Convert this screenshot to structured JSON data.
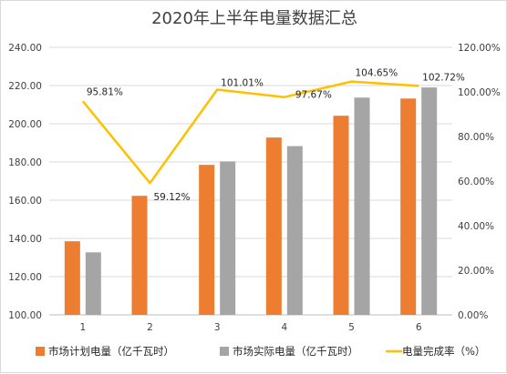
{
  "chart_data": {
    "type": "bar",
    "title": "2020年上半年电量数据汇总",
    "categories": [
      "1",
      "2",
      "3",
      "4",
      "5",
      "6"
    ],
    "series": [
      {
        "name": "市场计划电量（亿千瓦时）",
        "kind": "bar",
        "axis": "left",
        "color": "#ED7D31",
        "values": [
          138.5,
          162.3,
          178.5,
          192.8,
          204.2,
          213.2
        ]
      },
      {
        "name": "市场实际电量（亿千瓦时）",
        "kind": "bar",
        "axis": "left",
        "color": "#A5A5A5",
        "values": [
          132.7,
          null,
          180.3,
          188.3,
          213.7,
          219.0
        ]
      },
      {
        "name": "电量完成率（%）",
        "kind": "line",
        "axis": "right",
        "color": "#FFC000",
        "values": [
          95.81,
          59.12,
          101.01,
          97.67,
          104.65,
          102.72
        ],
        "labels": [
          "95.81%",
          "59.12%",
          "101.01%",
          "97.67%",
          "104.65%",
          "102.72%"
        ]
      }
    ],
    "y_left": {
      "min": 100,
      "max": 240,
      "step": 20,
      "ticks": [
        "100.00",
        "120.00",
        "140.00",
        "160.00",
        "180.00",
        "200.00",
        "220.00",
        "240.00"
      ]
    },
    "y_right": {
      "min": 0,
      "max": 120,
      "step": 20,
      "ticks": [
        "0.00%",
        "20.00%",
        "40.00%",
        "60.00%",
        "80.00%",
        "100.00%",
        "120.00%"
      ]
    },
    "grid": true,
    "legend_position": "bottom"
  }
}
